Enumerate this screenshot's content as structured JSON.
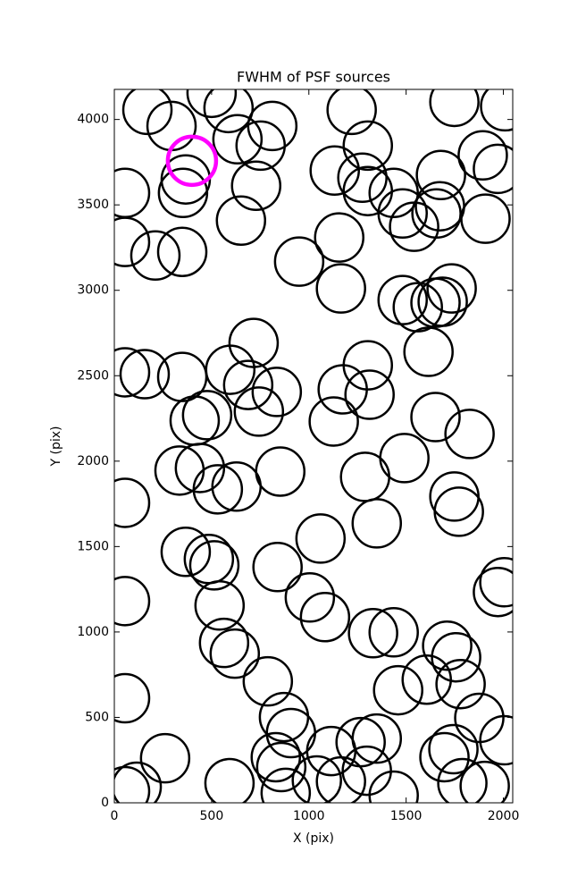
{
  "chart_data": {
    "type": "scatter",
    "title": "FWHM of PSF sources",
    "x_label": "X (pix)",
    "y_label": "Y (pix)",
    "xlim": [
      0,
      2048
    ],
    "ylim": [
      0,
      4176
    ],
    "xticks": [
      0,
      500,
      1000,
      1500,
      2000
    ],
    "yticks": [
      0,
      500,
      1000,
      1500,
      2000,
      2500,
      3000,
      3500,
      4000
    ],
    "series": [
      {
        "color": "#000000",
        "x": [
          170,
          294,
          500,
          587,
          812,
          752,
          633,
          1220,
          1748,
          2009,
          1303,
          1133,
          1275,
          1303,
          1436,
          1679,
          1894,
          1972,
          367,
          353,
          729,
          55,
          1482,
          1541,
          1656,
          1674,
          1908,
          651,
          55,
          211,
          349,
          1156,
          950,
          1165,
          1482,
          1560,
          1651,
          1688,
          1734,
          716,
          1615,
          55,
          156,
          349,
          596,
          1303,
          1312,
          1174,
          688,
          835,
          743,
          477,
          413,
          1128,
          1651,
          1826,
          1491,
          335,
          440,
          853,
          532,
          628,
          1289,
          55,
          1748,
          1771,
          1349,
          367,
          486,
          514,
          1060,
          839,
          55,
          541,
          1005,
          1083,
          2005,
          1972,
          1330,
          1436,
          564,
          619,
          789,
          1459,
          1606,
          1711,
          1757,
          1780,
          55,
          1876,
          872,
          908,
          2005,
          1349,
          1266,
          1115,
          830,
          858,
          1743,
          1697,
          261,
          1298,
          1165,
          1041,
          881,
          592,
          115,
          55,
          1436,
          1789,
          1904
        ],
        "y": [
          4056,
          3962,
          4156,
          4067,
          3962,
          3847,
          3884,
          4056,
          4103,
          4077,
          3847,
          3701,
          3659,
          3581,
          3570,
          3675,
          3790,
          3711,
          3649,
          3570,
          3612,
          3570,
          3450,
          3372,
          3450,
          3492,
          3419,
          3408,
          3283,
          3204,
          3225,
          3309,
          3168,
          3011,
          2943,
          2901,
          2927,
          2933,
          3011,
          2692,
          2640,
          2520,
          2509,
          2493,
          2535,
          2561,
          2389,
          2420,
          2446,
          2405,
          2290,
          2269,
          2237,
          2232,
          2258,
          2159,
          2018,
          1945,
          1960,
          1939,
          1835,
          1851,
          1908,
          1756,
          1793,
          1704,
          1636,
          1469,
          1427,
          1390,
          1547,
          1380,
          1181,
          1155,
          1202,
          1087,
          1291,
          1234,
          993,
          998,
          936,
          873,
          711,
          659,
          721,
          920,
          852,
          695,
          612,
          497,
          502,
          408,
          366,
          376,
          355,
          303,
          267,
          209,
          314,
          267,
          261,
          188,
          125,
          131,
          58,
          115,
          94,
          68,
          42,
          115,
          99
        ]
      },
      {
        "color": "#ff00ff",
        "x": [
          399
        ],
        "y": [
          3758
        ]
      }
    ]
  }
}
